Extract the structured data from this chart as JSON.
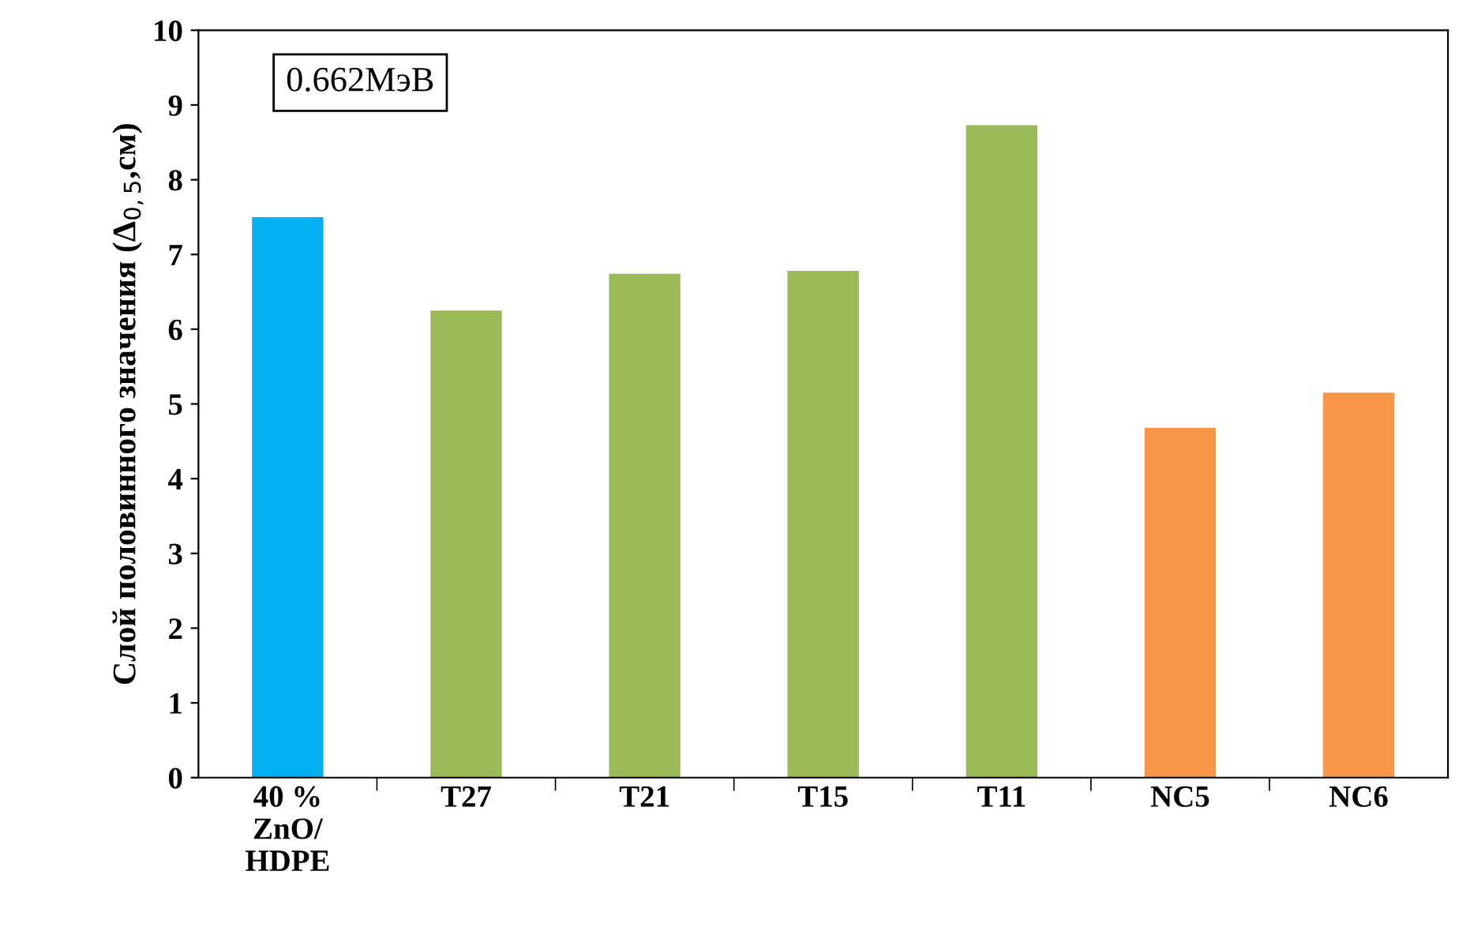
{
  "chart_data": {
    "type": "bar",
    "ylabel": "Слой половинного значения (Δ$_{0,5}$,см)",
    "categories": [
      "40 %\nZnO/\nHDPE",
      "T27",
      "T21",
      "T15",
      "T11",
      "NC5",
      "NC6"
    ],
    "values": [
      7.5,
      6.25,
      6.74,
      6.78,
      8.73,
      4.68,
      5.15
    ],
    "colors": [
      "#00b0f0",
      "#9bbb59",
      "#9bbb59",
      "#9bbb59",
      "#9bbb59",
      "#f79646",
      "#f79646"
    ],
    "ylim": [
      0,
      10
    ],
    "yticks": [
      0,
      1,
      2,
      3,
      4,
      5,
      6,
      7,
      8,
      9,
      10
    ],
    "grid": false,
    "annotations": [
      "0.662МэВ"
    ]
  }
}
